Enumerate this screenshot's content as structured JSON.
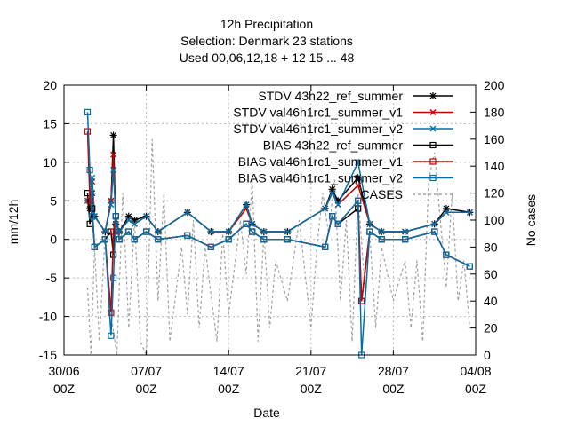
{
  "chart_data": {
    "type": "line",
    "title_lines": [
      "12h Precipitation",
      "Selection: Denmark     23 stations",
      "Used  00,06,12,18  + 12 15 ... 48"
    ],
    "xlabel": "Date",
    "ylabel": "mm/12h",
    "y2label": "No cases",
    "xlim": [
      "2013-06-30T00",
      "2013-08-04T00"
    ],
    "ylim": [
      -15,
      20
    ],
    "y2lim": [
      0,
      200
    ],
    "x_ticks": [
      {
        "line1": "30/06",
        "line2": "00Z",
        "day": 0
      },
      {
        "line1": "07/07",
        "line2": "00Z",
        "day": 7
      },
      {
        "line1": "14/07",
        "line2": "00Z",
        "day": 14
      },
      {
        "line1": "21/07",
        "line2": "00Z",
        "day": 21
      },
      {
        "line1": "28/07",
        "line2": "00Z",
        "day": 28
      },
      {
        "line1": "04/08",
        "line2": "00Z",
        "day": 35
      }
    ],
    "y_ticks": [
      -15,
      -10,
      -5,
      0,
      5,
      10,
      15,
      20
    ],
    "y2_ticks": [
      0,
      20,
      40,
      60,
      80,
      100,
      120,
      140,
      160,
      180,
      200
    ],
    "grid": true,
    "legend_position": "top-right",
    "series": [
      {
        "name": "STDV 43h22_ref_summer",
        "role": "stdv",
        "color": "#000000",
        "marker": "star",
        "points": [
          [
            2.0,
            5
          ],
          [
            2.2,
            4
          ],
          [
            2.4,
            6
          ],
          [
            2.6,
            3
          ],
          [
            3.5,
            1
          ],
          [
            4.0,
            5
          ],
          [
            4.2,
            13.5
          ],
          [
            4.4,
            2
          ],
          [
            4.7,
            1
          ],
          [
            5.5,
            3
          ],
          [
            6,
            2.5
          ],
          [
            7,
            3
          ],
          [
            8,
            1
          ],
          [
            10.5,
            3.5
          ],
          [
            12.5,
            1
          ],
          [
            14,
            1
          ],
          [
            15.5,
            4.5
          ],
          [
            16,
            2
          ],
          [
            17,
            1
          ],
          [
            19,
            1
          ],
          [
            22.2,
            4
          ],
          [
            22.8,
            6.5
          ],
          [
            23.3,
            5
          ],
          [
            25,
            8
          ],
          [
            26,
            2
          ],
          [
            27,
            1
          ],
          [
            29,
            1
          ],
          [
            31.5,
            2
          ],
          [
            32.5,
            4
          ],
          [
            34.5,
            3.5
          ]
        ]
      },
      {
        "name": "STDV val46h1rc1_summer_v1",
        "role": "stdv",
        "color": "#cc0000",
        "marker": "x",
        "points": [
          [
            2.0,
            5
          ],
          [
            2.2,
            4.5
          ],
          [
            2.4,
            7.5
          ],
          [
            2.6,
            3
          ],
          [
            3.5,
            1
          ],
          [
            4.0,
            5
          ],
          [
            4.2,
            11
          ],
          [
            4.4,
            2.5
          ],
          [
            4.7,
            1
          ],
          [
            5.5,
            2.5
          ],
          [
            6,
            2
          ],
          [
            7,
            3
          ],
          [
            8,
            1
          ],
          [
            10.5,
            3.5
          ],
          [
            12.5,
            1
          ],
          [
            14,
            1
          ],
          [
            15.5,
            4
          ],
          [
            16,
            2
          ],
          [
            17,
            1
          ],
          [
            19,
            1
          ],
          [
            22.2,
            4
          ],
          [
            22.8,
            6
          ],
          [
            23.3,
            4.5
          ],
          [
            25,
            7
          ],
          [
            26,
            2
          ],
          [
            27,
            1
          ],
          [
            29,
            1
          ],
          [
            31.5,
            2
          ],
          [
            32.5,
            3.5
          ],
          [
            34.5,
            3.5
          ]
        ]
      },
      {
        "name": "STDV val46h1rc1_summer_v2",
        "role": "stdv",
        "color": "#0070a8",
        "marker": "x",
        "points": [
          [
            2.0,
            5
          ],
          [
            2.2,
            4.5
          ],
          [
            2.4,
            8
          ],
          [
            2.6,
            3
          ],
          [
            3.5,
            1
          ],
          [
            4.0,
            4.5
          ],
          [
            4.2,
            9
          ],
          [
            4.4,
            2.5
          ],
          [
            4.7,
            1
          ],
          [
            5.5,
            2.5
          ],
          [
            6,
            2
          ],
          [
            7,
            3
          ],
          [
            8,
            1
          ],
          [
            10.5,
            3.5
          ],
          [
            12.5,
            1
          ],
          [
            14,
            1
          ],
          [
            15.5,
            4.5
          ],
          [
            16,
            2
          ],
          [
            17,
            1
          ],
          [
            19,
            1
          ],
          [
            22.2,
            4
          ],
          [
            22.8,
            6
          ],
          [
            23.3,
            4.5
          ],
          [
            25,
            10
          ],
          [
            26,
            2
          ],
          [
            27,
            1
          ],
          [
            29,
            1
          ],
          [
            31.5,
            2
          ],
          [
            32.5,
            3.5
          ],
          [
            34.5,
            3.5
          ]
        ]
      },
      {
        "name": "BIAS 43h22_ref_summer",
        "role": "bias",
        "color": "#000000",
        "marker": "square",
        "points": [
          [
            2.0,
            6
          ],
          [
            2.2,
            2
          ],
          [
            2.4,
            4
          ],
          [
            2.6,
            -1
          ],
          [
            3.5,
            0
          ],
          [
            4.0,
            1
          ],
          [
            4.2,
            -2
          ],
          [
            4.4,
            3
          ],
          [
            4.7,
            0
          ],
          [
            5.5,
            1
          ],
          [
            6,
            0
          ],
          [
            7,
            1
          ],
          [
            8,
            0
          ],
          [
            10.5,
            0.5
          ],
          [
            12.5,
            -1
          ],
          [
            14,
            0
          ],
          [
            15.5,
            2
          ],
          [
            16,
            1
          ],
          [
            17,
            0
          ],
          [
            19,
            0
          ],
          [
            22.2,
            -1
          ],
          [
            22.8,
            3
          ],
          [
            23.3,
            2
          ],
          [
            25,
            4
          ],
          [
            25.3,
            -8
          ],
          [
            26,
            1
          ],
          [
            27,
            0
          ],
          [
            29,
            0
          ],
          [
            31.5,
            1
          ],
          [
            32.5,
            -2
          ],
          [
            34.5,
            -3.5
          ]
        ]
      },
      {
        "name": "BIAS val46h1rc1_summer_v1",
        "role": "bias",
        "color": "#cc0000",
        "marker": "square",
        "points": [
          [
            2.0,
            14
          ],
          [
            2.2,
            5
          ],
          [
            2.4,
            3
          ],
          [
            2.6,
            -1
          ],
          [
            3.5,
            0
          ],
          [
            4.0,
            -9.5
          ],
          [
            4.2,
            1
          ],
          [
            4.4,
            3
          ],
          [
            4.7,
            0
          ],
          [
            5.5,
            1
          ],
          [
            6,
            0
          ],
          [
            7,
            1
          ],
          [
            8,
            0
          ],
          [
            10.5,
            0.5
          ],
          [
            12.5,
            -1
          ],
          [
            14,
            0
          ],
          [
            15.5,
            2
          ],
          [
            16,
            1
          ],
          [
            17,
            0
          ],
          [
            19,
            0
          ],
          [
            22.2,
            -1
          ],
          [
            22.8,
            3
          ],
          [
            23.3,
            2
          ],
          [
            25,
            5
          ],
          [
            25.3,
            -8
          ],
          [
            26,
            1
          ],
          [
            27,
            0
          ],
          [
            29,
            0
          ],
          [
            31.5,
            1
          ],
          [
            32.5,
            -2
          ],
          [
            34.5,
            -3.5
          ]
        ]
      },
      {
        "name": "BIAS val46h1rc1_summer_v2",
        "role": "bias",
        "color": "#0070a8",
        "marker": "square",
        "points": [
          [
            2.0,
            16.5
          ],
          [
            2.2,
            9
          ],
          [
            2.4,
            3
          ],
          [
            2.6,
            -1
          ],
          [
            3.5,
            0
          ],
          [
            4.0,
            -12.5
          ],
          [
            4.2,
            -5
          ],
          [
            4.4,
            3
          ],
          [
            4.7,
            0
          ],
          [
            5.5,
            1
          ],
          [
            6,
            0
          ],
          [
            7,
            1
          ],
          [
            8,
            0
          ],
          [
            10.5,
            0.5
          ],
          [
            12.5,
            -1
          ],
          [
            14,
            0
          ],
          [
            15.5,
            2
          ],
          [
            16,
            1
          ],
          [
            17,
            0
          ],
          [
            19,
            0
          ],
          [
            22.2,
            -1
          ],
          [
            22.8,
            3
          ],
          [
            23.3,
            2
          ],
          [
            25,
            5
          ],
          [
            25.3,
            -15
          ],
          [
            26,
            1
          ],
          [
            27,
            0
          ],
          [
            29,
            0
          ],
          [
            31.5,
            1
          ],
          [
            32.5,
            -2
          ],
          [
            34.5,
            -3.5
          ]
        ]
      },
      {
        "name": "CASES",
        "role": "cases",
        "color": "#a0a0a0",
        "dash": true,
        "points": [
          [
            2,
            50
          ],
          [
            2.3,
            0
          ],
          [
            2.6,
            80
          ],
          [
            3,
            10
          ],
          [
            3.5,
            90
          ],
          [
            4,
            30
          ],
          [
            4.5,
            0
          ],
          [
            5,
            120
          ],
          [
            5.5,
            20
          ],
          [
            6,
            100
          ],
          [
            6.5,
            10
          ],
          [
            7,
            0
          ],
          [
            7.5,
            160
          ],
          [
            8,
            40
          ],
          [
            8.5,
            120
          ],
          [
            9,
            10
          ],
          [
            10,
            80
          ],
          [
            10.5,
            30
          ],
          [
            11,
            100
          ],
          [
            11.5,
            20
          ],
          [
            12,
            80
          ],
          [
            13,
            10
          ],
          [
            13.5,
            90
          ],
          [
            14,
            30
          ],
          [
            15,
            100
          ],
          [
            15.5,
            60
          ],
          [
            16,
            130
          ],
          [
            16.5,
            10
          ],
          [
            17,
            90
          ],
          [
            17.5,
            20
          ],
          [
            18,
            70
          ],
          [
            19,
            40
          ],
          [
            20,
            100
          ],
          [
            21,
            20
          ],
          [
            21.5,
            80
          ],
          [
            22,
            120
          ],
          [
            22.5,
            90
          ],
          [
            23,
            130
          ],
          [
            23.5,
            40
          ],
          [
            24,
            100
          ],
          [
            24.5,
            10
          ],
          [
            25,
            120
          ],
          [
            25.5,
            60
          ],
          [
            26,
            90
          ],
          [
            26.5,
            20
          ],
          [
            27,
            80
          ],
          [
            28,
            40
          ],
          [
            29,
            70
          ],
          [
            29.5,
            20
          ],
          [
            30,
            70
          ],
          [
            30.5,
            10
          ],
          [
            31,
            130
          ],
          [
            31.5,
            150
          ],
          [
            32,
            100
          ],
          [
            32.5,
            50
          ],
          [
            33,
            120
          ],
          [
            33.5,
            40
          ],
          [
            34,
            70
          ],
          [
            34.5,
            20
          ]
        ]
      }
    ]
  }
}
